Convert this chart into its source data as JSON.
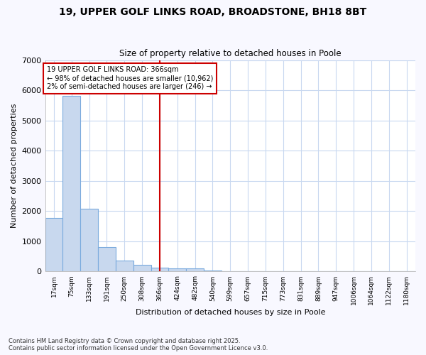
{
  "title_line1": "19, UPPER GOLF LINKS ROAD, BROADSTONE, BH18 8BT",
  "title_line2": "Size of property relative to detached houses in Poole",
  "xlabel": "Distribution of detached houses by size in Poole",
  "ylabel": "Number of detached properties",
  "footnote_line1": "Contains HM Land Registry data © Crown copyright and database right 2025.",
  "footnote_line2": "Contains public sector information licensed under the Open Government Licence v3.0.",
  "annotation_line1": "19 UPPER GOLF LINKS ROAD: 366sqm",
  "annotation_line2": "← 98% of detached houses are smaller (10,962)",
  "annotation_line3": "2% of semi-detached houses are larger (246) →",
  "bar_labels": [
    "17sqm",
    "75sqm",
    "133sqm",
    "191sqm",
    "250sqm",
    "308sqm",
    "366sqm",
    "424sqm",
    "482sqm",
    "540sqm",
    "599sqm",
    "657sqm",
    "715sqm",
    "773sqm",
    "831sqm",
    "889sqm",
    "947sqm",
    "1006sqm",
    "1064sqm",
    "1122sqm",
    "1180sqm"
  ],
  "bar_values": [
    1780,
    5810,
    2080,
    820,
    370,
    220,
    130,
    100,
    100,
    30,
    10,
    10,
    5,
    5,
    5,
    3,
    3,
    2,
    2,
    2,
    2
  ],
  "bar_color": "#c8d8ee",
  "bar_edgecolor": "#7aaadd",
  "redline_index": 6,
  "redline_color": "#cc0000",
  "annotation_box_color": "#cc0000",
  "ylim": [
    0,
    7000
  ],
  "yticks": [
    0,
    1000,
    2000,
    3000,
    4000,
    5000,
    6000,
    7000
  ],
  "background_color": "#ffffff",
  "grid_color": "#c8d8f0",
  "fig_background": "#f8f8ff"
}
